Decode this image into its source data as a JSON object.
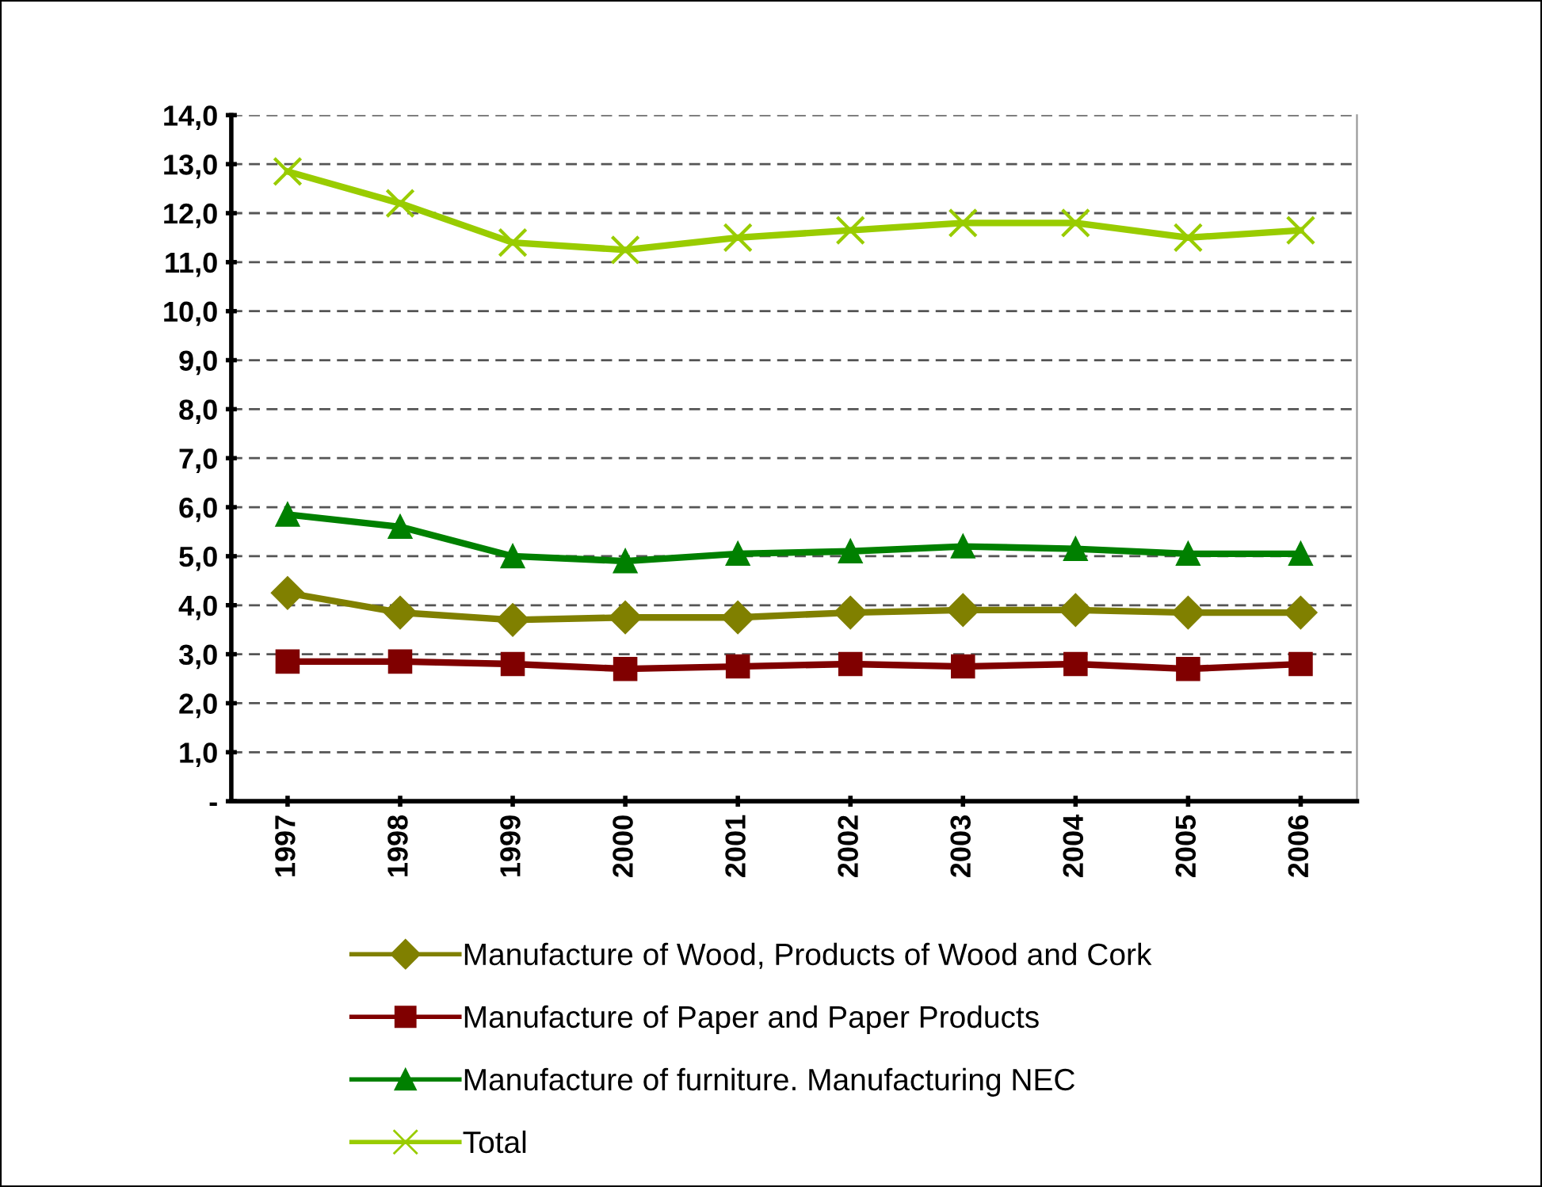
{
  "chart_data": {
    "type": "line",
    "categories": [
      "1997",
      "1998",
      "1999",
      "2000",
      "2001",
      "2002",
      "2003",
      "2004",
      "2005",
      "2006"
    ],
    "series": [
      {
        "name": "Manufacture of Wood, Products of Wood and Cork",
        "color": "#808000",
        "marker": "diamond",
        "values": [
          4.25,
          3.85,
          3.7,
          3.75,
          3.75,
          3.85,
          3.9,
          3.9,
          3.85,
          3.85
        ]
      },
      {
        "name": "Manufacture of Paper and Paper Products",
        "color": "#800000",
        "marker": "square",
        "values": [
          2.85,
          2.85,
          2.8,
          2.7,
          2.75,
          2.8,
          2.75,
          2.8,
          2.7,
          2.8
        ]
      },
      {
        "name": "Manufacture of furniture. Manufacturing NEC",
        "color": "#008000",
        "marker": "triangle",
        "values": [
          5.85,
          5.6,
          5.0,
          4.9,
          5.05,
          5.1,
          5.2,
          5.15,
          5.05,
          5.05
        ]
      },
      {
        "name": "Total",
        "color": "#99cc00",
        "marker": "cross",
        "values": [
          12.85,
          12.2,
          11.4,
          11.25,
          11.5,
          11.65,
          11.8,
          11.8,
          11.5,
          11.65
        ]
      }
    ],
    "ylim": [
      0,
      14
    ],
    "yticks": [
      {
        "value": 0,
        "label": "-"
      },
      {
        "value": 1,
        "label": "1,0"
      },
      {
        "value": 2,
        "label": "2,0"
      },
      {
        "value": 3,
        "label": "3,0"
      },
      {
        "value": 4,
        "label": "4,0"
      },
      {
        "value": 5,
        "label": "5,0"
      },
      {
        "value": 6,
        "label": "6,0"
      },
      {
        "value": 7,
        "label": "7,0"
      },
      {
        "value": 8,
        "label": "8,0"
      },
      {
        "value": 9,
        "label": "9,0"
      },
      {
        "value": 10,
        "label": "10,0"
      },
      {
        "value": 11,
        "label": "11,0"
      },
      {
        "value": 12,
        "label": "12,0"
      },
      {
        "value": 13,
        "label": "13,0"
      },
      {
        "value": 14,
        "label": "14,0"
      }
    ],
    "grid": "y",
    "legend": "bottom",
    "line_style": "solid"
  }
}
